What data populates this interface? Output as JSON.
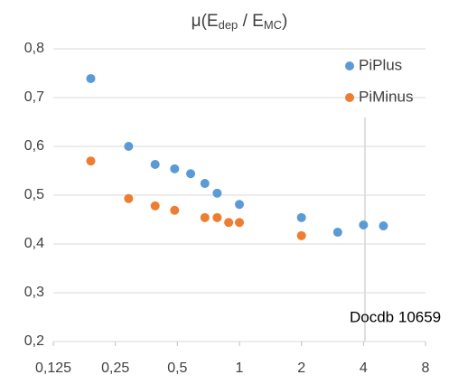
{
  "chart_data": {
    "type": "scatter",
    "title_parts": [
      "μ(E",
      "dep",
      " / E",
      "MC",
      ")"
    ],
    "annotation": "Docdb 10659",
    "xscale": "log",
    "xlim": [
      0.125,
      8
    ],
    "xticks": [
      {
        "value": 0.125,
        "label": "0,125"
      },
      {
        "value": 0.25,
        "label": "0,25"
      },
      {
        "value": 0.5,
        "label": "0,5"
      },
      1,
      2,
      4,
      8
    ],
    "ylim": [
      0.2,
      0.8
    ],
    "yticks": [
      {
        "value": 0.2,
        "label": "0,2"
      },
      {
        "value": 0.3,
        "label": "0,3"
      },
      {
        "value": 0.4,
        "label": "0,4"
      },
      {
        "value": 0.5,
        "label": "0,5"
      },
      {
        "value": 0.6,
        "label": "0,6"
      },
      {
        "value": 0.7,
        "label": "0,7"
      },
      {
        "value": 0.8,
        "label": "0,8"
      }
    ],
    "grid": true,
    "legend": "top-right",
    "series": [
      {
        "name": "PiPlus",
        "color": "#5b9bd5",
        "x": [
          0.19,
          0.29,
          0.39,
          0.485,
          0.58,
          0.68,
          0.78,
          1.0,
          2,
          3,
          4,
          5
        ],
        "values": [
          0.739,
          0.6,
          0.563,
          0.554,
          0.544,
          0.524,
          0.504,
          0.481,
          0.454,
          0.424,
          0.439,
          0.437
        ]
      },
      {
        "name": "PiMinus",
        "color": "#ed7d31",
        "x": [
          0.19,
          0.29,
          0.39,
          0.485,
          0.68,
          0.78,
          0.887,
          1.0,
          2
        ],
        "values": [
          0.57,
          0.493,
          0.478,
          0.469,
          0.454,
          0.454,
          0.444,
          0.444,
          0.417
        ]
      }
    ]
  }
}
